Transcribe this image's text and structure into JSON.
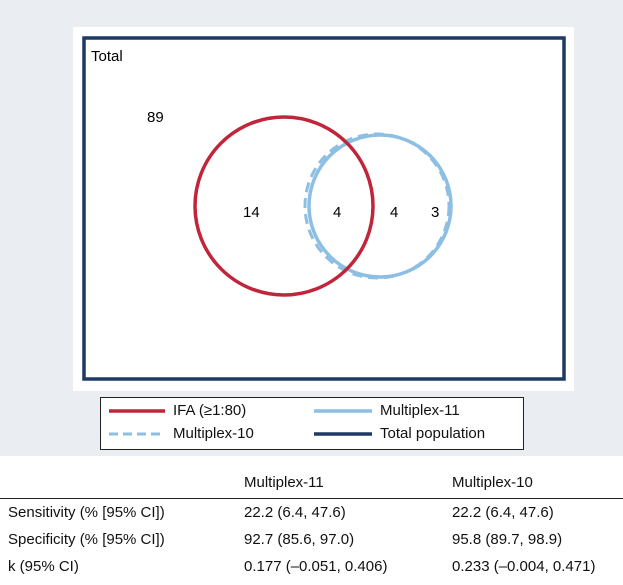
{
  "venn": {
    "total_label": "Total",
    "outside_count": "89",
    "ifa_only": "14",
    "ifa_and_m11_in_m10": "4",
    "m11_only_inner": "4",
    "m11_only_outer": "3"
  },
  "legend": {
    "ifa": "IFA (≥1:80)",
    "multiplex11": "Multiplex-11",
    "multiplex10": "Multiplex-10",
    "total_population": "Total population"
  },
  "colors": {
    "ifa": "#c0253a",
    "multiplex": "#8cbfe3",
    "total": "#1d3a66",
    "panel_bg": "#eaeef2"
  },
  "table": {
    "headers": [
      "",
      "Multiplex-11",
      "Multiplex-10"
    ],
    "rows": [
      [
        "Sensitivity (% [95% CI])",
        "22.2 (6.4, 47.6)",
        "22.2 (6.4, 47.6)"
      ],
      [
        "Specificity (% [95% CI])",
        "92.7 (85.6, 97.0)",
        "95.8 (89.7, 98.9)"
      ],
      [
        "k (95% CI)",
        "0.177 (–0.051, 0.406)",
        "0.233 (–0.004, 0.471)"
      ]
    ]
  }
}
